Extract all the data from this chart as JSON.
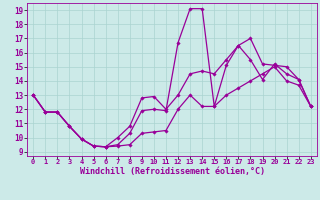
{
  "bg_color": "#cceae8",
  "line_color": "#990099",
  "grid_color": "#aad4d0",
  "xlabel": "Windchill (Refroidissement éolien,°C)",
  "xlabel_fontsize": 6.0,
  "xtick_fontsize": 5.0,
  "ytick_fontsize": 5.5,
  "xlim": [
    -0.5,
    23.5
  ],
  "ylim": [
    8.7,
    19.5
  ],
  "yticks": [
    9,
    10,
    11,
    12,
    13,
    14,
    15,
    16,
    17,
    18,
    19
  ],
  "xticks": [
    0,
    1,
    2,
    3,
    4,
    5,
    6,
    7,
    8,
    9,
    10,
    11,
    12,
    13,
    14,
    15,
    16,
    17,
    18,
    19,
    20,
    21,
    22,
    23
  ],
  "line1_x": [
    0,
    1,
    2,
    3,
    4,
    5,
    6,
    7,
    8,
    9,
    10,
    11,
    12,
    13,
    14,
    15,
    16,
    17,
    18,
    19,
    20,
    21,
    22,
    23
  ],
  "line1_y": [
    13.0,
    11.8,
    11.8,
    10.8,
    9.9,
    9.4,
    9.35,
    9.4,
    9.5,
    10.3,
    10.4,
    10.5,
    12.0,
    13.0,
    12.2,
    12.2,
    13.0,
    13.5,
    14.0,
    14.5,
    15.0,
    14.0,
    13.7,
    12.2
  ],
  "line2_x": [
    0,
    1,
    2,
    3,
    4,
    5,
    6,
    7,
    8,
    9,
    10,
    11,
    12,
    13,
    14,
    15,
    16,
    17,
    18,
    19,
    20,
    21,
    22,
    23
  ],
  "line2_y": [
    13.0,
    11.8,
    11.8,
    10.8,
    9.9,
    9.4,
    9.35,
    9.5,
    10.3,
    11.9,
    12.0,
    11.9,
    16.7,
    19.1,
    19.1,
    12.2,
    15.1,
    16.5,
    17.0,
    15.2,
    15.1,
    15.0,
    14.1,
    12.2
  ],
  "line3_x": [
    0,
    1,
    2,
    3,
    4,
    5,
    6,
    7,
    8,
    9,
    10,
    11,
    12,
    13,
    14,
    15,
    16,
    17,
    18,
    19,
    20,
    21,
    22,
    23
  ],
  "line3_y": [
    13.0,
    11.8,
    11.8,
    10.8,
    9.9,
    9.4,
    9.35,
    10.0,
    10.8,
    12.8,
    12.9,
    12.0,
    13.0,
    14.5,
    14.7,
    14.5,
    15.5,
    16.5,
    15.5,
    14.1,
    15.2,
    14.5,
    14.1,
    12.2
  ],
  "marker": "D",
  "marker_size": 1.8,
  "linewidth": 0.9
}
